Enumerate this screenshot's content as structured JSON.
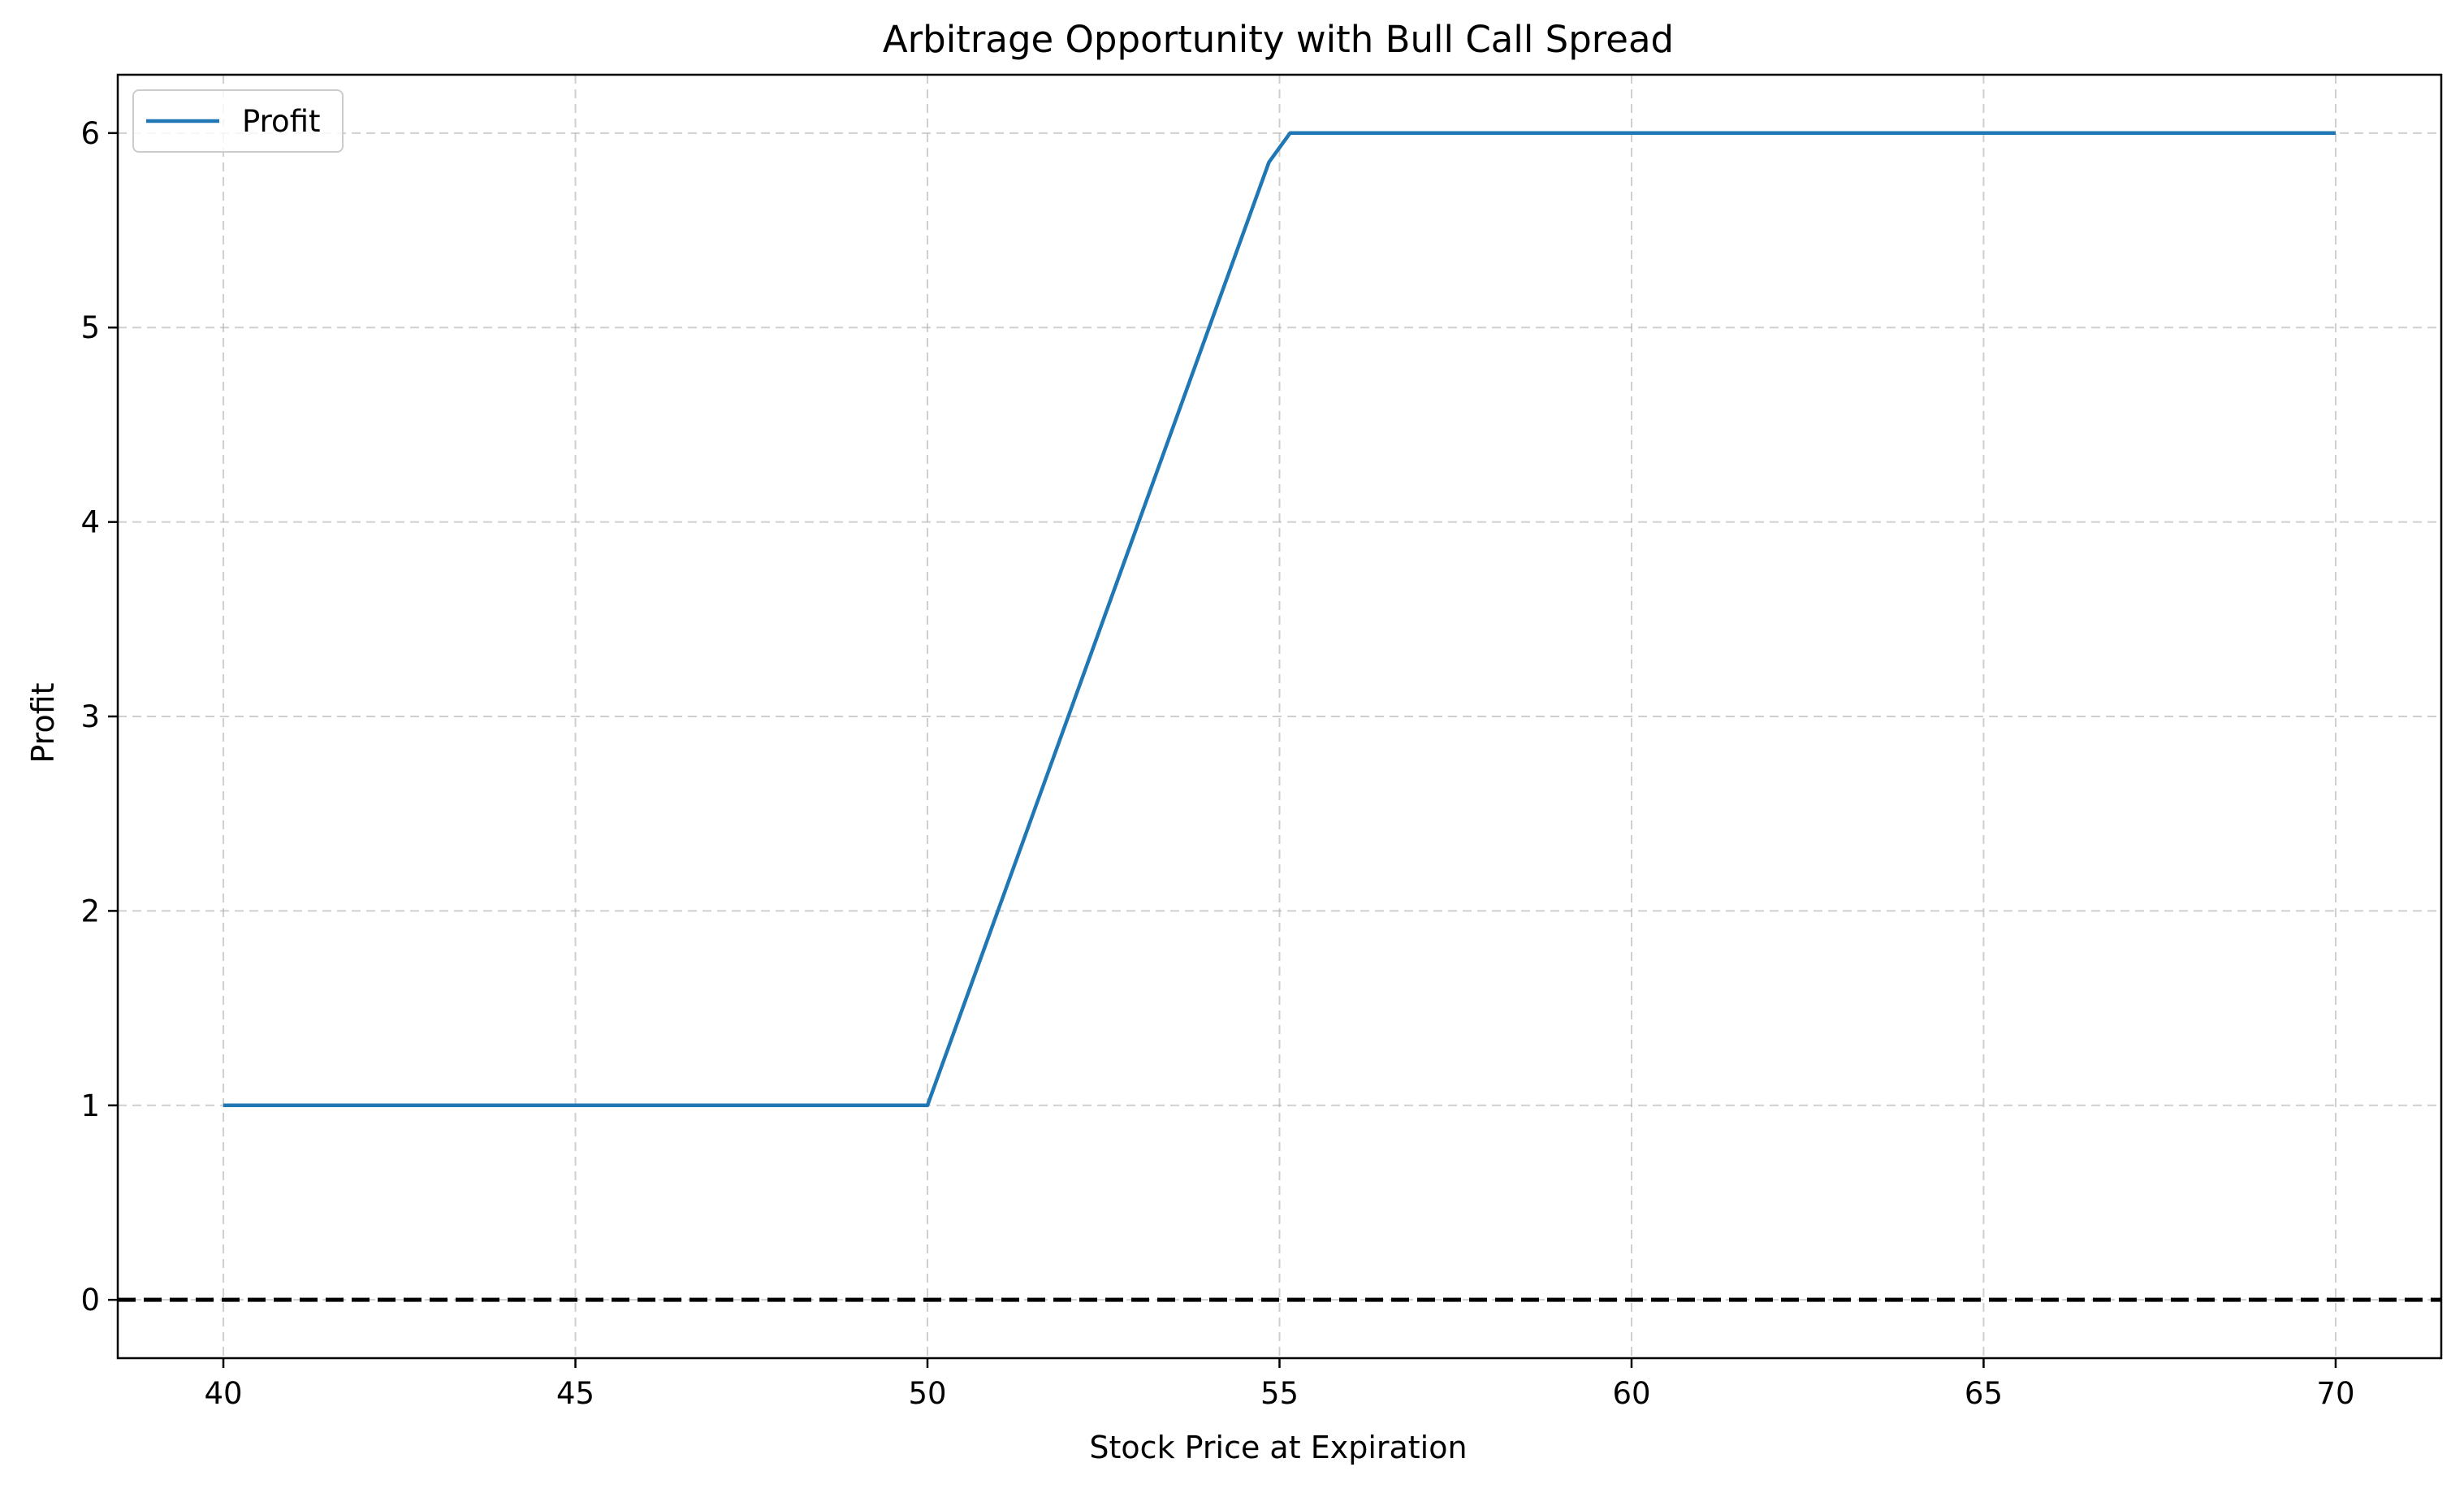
{
  "chart_data": {
    "type": "line",
    "title": "Arbitrage Opportunity with Bull Call Spread",
    "xlabel": "Stock Price at Expiration",
    "ylabel": "Profit",
    "xlim": [
      38.5,
      71.5
    ],
    "ylim": [
      -0.3,
      6.3
    ],
    "x_ticks": [
      40,
      45,
      50,
      55,
      60,
      65,
      70
    ],
    "y_ticks": [
      0,
      1,
      2,
      3,
      4,
      5,
      6
    ],
    "grid": true,
    "legend": {
      "position": "upper-left",
      "entries": [
        "Profit"
      ]
    },
    "series": [
      {
        "name": "Profit",
        "color": "#1f77b4",
        "x": [
          40,
          45,
          50,
          52.5,
          54.85,
          55.15,
          60,
          65,
          70
        ],
        "y": [
          1,
          1,
          1,
          3.5,
          5.85,
          6,
          6,
          6,
          6
        ]
      }
    ],
    "reference_lines": [
      {
        "axis": "y",
        "value": 0,
        "color": "#000000",
        "style": "dashed"
      }
    ]
  }
}
